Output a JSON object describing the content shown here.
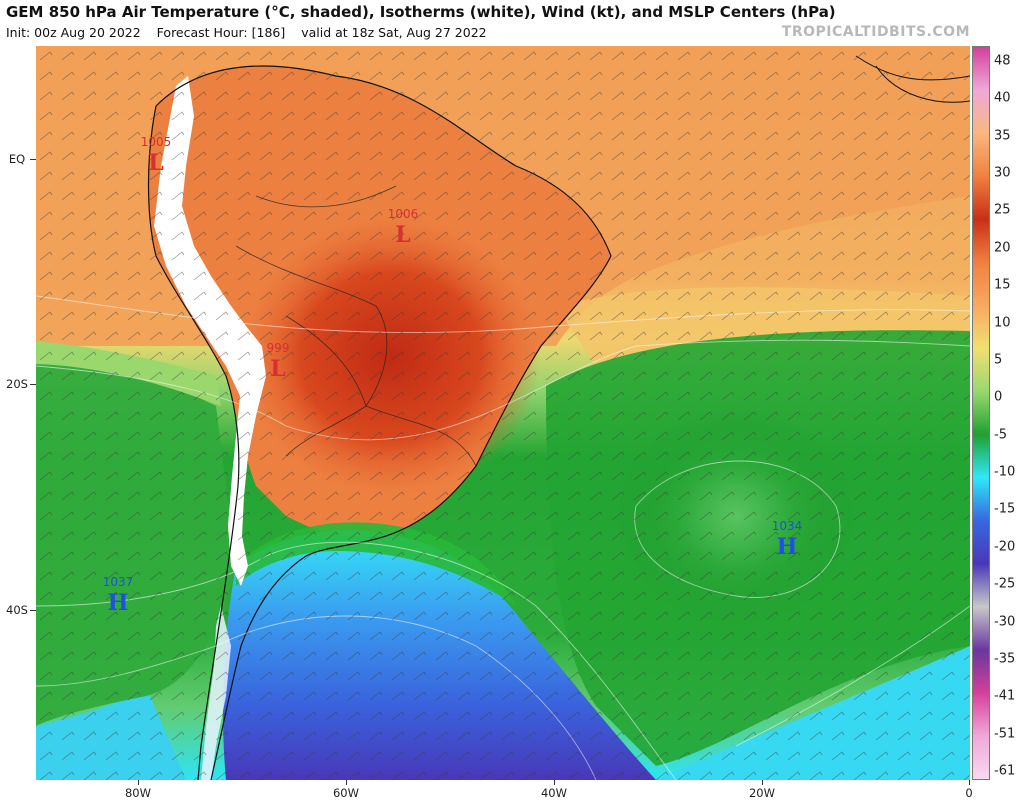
{
  "header": {
    "title": "GEM 850 hPa Air Temperature (°C, shaded), Isotherms (white), Wind (kt), and MSLP Centers (hPa)",
    "init": "Init: 00z Aug 20 2022",
    "forecast_hour": "Forecast Hour: [186]",
    "valid": "valid at 18z Sat, Aug 27 2022",
    "brand": "TROPICALTIDBITS.COM"
  },
  "axes": {
    "lat_labels": [
      "EQ",
      "20S",
      "40S"
    ],
    "lon_labels": [
      "80W",
      "60W",
      "40W",
      "20W",
      "0"
    ]
  },
  "colorbar": {
    "labels": [
      "48",
      "40",
      "35",
      "30",
      "25",
      "20",
      "15",
      "10",
      "5",
      "0",
      "-5",
      "-10",
      "-15",
      "-20",
      "-25",
      "-30",
      "-35",
      "-41",
      "-51",
      "-61"
    ],
    "colors": {
      "hot_magenta": "#d4409a",
      "pink": "#f0a8d8",
      "light_orange": "#f8b880",
      "orange": "#f08040",
      "red": "#c83018",
      "peach": "#f8a860",
      "yellow": "#f0e070",
      "light_green": "#98d870",
      "green": "#20a030",
      "cyan": "#30e8f8",
      "blue": "#3868e0",
      "indigo": "#4838b8",
      "grey": "#c8c8c8",
      "purple": "#6838a0",
      "pale_pink": "#f8d8f0"
    }
  },
  "pressure_centers": [
    {
      "type": "L",
      "value": "1005",
      "color": "#d83030"
    },
    {
      "type": "L",
      "value": "1006",
      "color": "#d83030"
    },
    {
      "type": "L",
      "value": "999",
      "color": "#d83030"
    },
    {
      "type": "H",
      "value": "1034",
      "color": "#2050e0"
    },
    {
      "type": "H",
      "value": "1037",
      "color": "#2050e0"
    }
  ]
}
